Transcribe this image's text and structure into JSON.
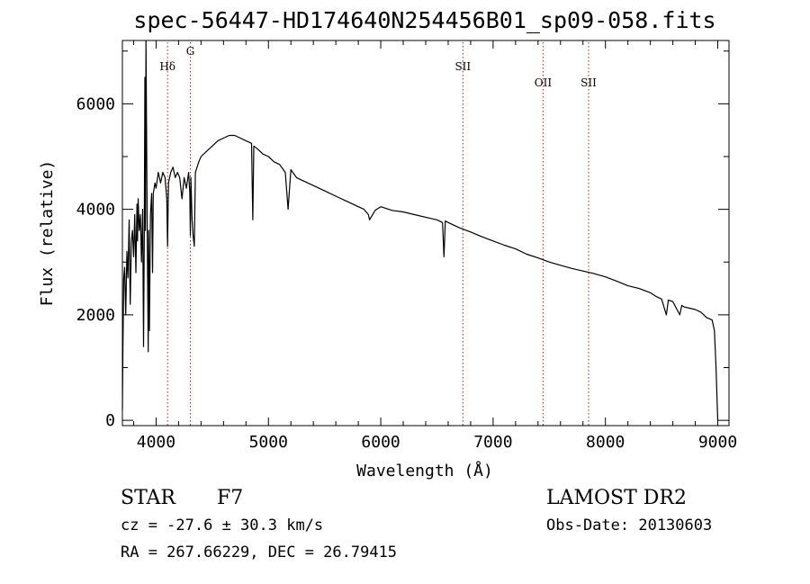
{
  "chart_data": {
    "type": "line",
    "title": "spec-56447-HD174640N254456B01_sp09-058.fits",
    "xlabel": "Wavelength (Å)",
    "ylabel": "Flux (relative)",
    "xlim": [
      3700,
      9100
    ],
    "ylim": [
      -100,
      7200
    ],
    "x_ticks": [
      4000,
      5000,
      6000,
      7000,
      8000,
      9000
    ],
    "y_ticks": [
      0,
      2000,
      4000,
      6000
    ],
    "series": [
      {
        "name": "spectrum",
        "x": [
          3700,
          3705,
          3712,
          3720,
          3730,
          3740,
          3750,
          3760,
          3770,
          3780,
          3790,
          3800,
          3810,
          3820,
          3830,
          3835,
          3840,
          3850,
          3860,
          3870,
          3880,
          3888,
          3895,
          3900,
          3905,
          3910,
          3920,
          3930,
          3934,
          3940,
          3950,
          3960,
          3968,
          3975,
          3990,
          4000,
          4020,
          4040,
          4060,
          4080,
          4095,
          4102,
          4110,
          4130,
          4150,
          4170,
          4190,
          4210,
          4230,
          4250,
          4270,
          4290,
          4300,
          4305,
          4310,
          4320,
          4330,
          4340,
          4350,
          4380,
          4400,
          4450,
          4500,
          4550,
          4600,
          4650,
          4700,
          4750,
          4800,
          4850,
          4861,
          4870,
          4900,
          4950,
          5000,
          5050,
          5100,
          5150,
          5175,
          5200,
          5250,
          5300,
          5400,
          5500,
          5600,
          5700,
          5800,
          5850,
          5890,
          5900,
          5950,
          6000,
          6100,
          6200,
          6300,
          6400,
          6500,
          6550,
          6563,
          6575,
          6600,
          6700,
          6800,
          6900,
          7000,
          7100,
          7200,
          7300,
          7400,
          7500,
          7600,
          7700,
          7800,
          7900,
          8000,
          8100,
          8200,
          8300,
          8400,
          8450,
          8500,
          8542,
          8560,
          8600,
          8662,
          8680,
          8700,
          8800,
          8850,
          8900,
          8950,
          8970,
          8985,
          8995,
          9000
        ],
        "values": [
          200,
          1400,
          2700,
          2900,
          2000,
          3200,
          2700,
          3800,
          2200,
          3400,
          3600,
          3100,
          3900,
          2800,
          4100,
          3400,
          4200,
          3600,
          3900,
          3000,
          4000,
          1400,
          3500,
          6500,
          3600,
          7200,
          3800,
          1300,
          3600,
          1700,
          3900,
          4300,
          2800,
          4300,
          4500,
          4400,
          4700,
          4500,
          4700,
          4600,
          4200,
          3300,
          4500,
          4700,
          4800,
          4600,
          4700,
          4600,
          4200,
          4600,
          4400,
          4700,
          4300,
          3500,
          4600,
          3800,
          3500,
          3300,
          4700,
          4900,
          5000,
          5100,
          5200,
          5300,
          5350,
          5400,
          5400,
          5350,
          5300,
          5250,
          3800,
          5200,
          5150,
          5050,
          5000,
          4900,
          4850,
          4700,
          4000,
          4750,
          4600,
          4550,
          4450,
          4350,
          4250,
          4150,
          4050,
          4000,
          3900,
          3800,
          3980,
          4050,
          3980,
          3950,
          3900,
          3850,
          3800,
          3750,
          3100,
          3780,
          3750,
          3650,
          3570,
          3480,
          3400,
          3320,
          3250,
          3150,
          3080,
          3000,
          2940,
          2880,
          2830,
          2780,
          2720,
          2640,
          2550,
          2500,
          2420,
          2350,
          2300,
          2000,
          2280,
          2250,
          2000,
          2180,
          2150,
          2100,
          2050,
          1950,
          1900,
          1700,
          1000,
          300,
          0
        ]
      }
    ],
    "line_markers": [
      {
        "label": "Hδ",
        "x": 4102
      },
      {
        "label": "G",
        "x": 4305
      },
      {
        "label": "SII",
        "x": 6731
      },
      {
        "label": "OII",
        "x": 7445
      },
      {
        "label": "SII",
        "x": 7850
      }
    ],
    "grid": false
  },
  "info": {
    "object_class": "STAR",
    "subclass": "F7",
    "survey": "LAMOST DR2",
    "cz": "cz = -27.6 ± 30.3 km/s",
    "obs_date": "Obs-Date: 20130603",
    "coords": "RA = 267.66229, DEC =  26.79415"
  },
  "colors": {
    "marker": "#aa2222",
    "ink": "#000000"
  }
}
